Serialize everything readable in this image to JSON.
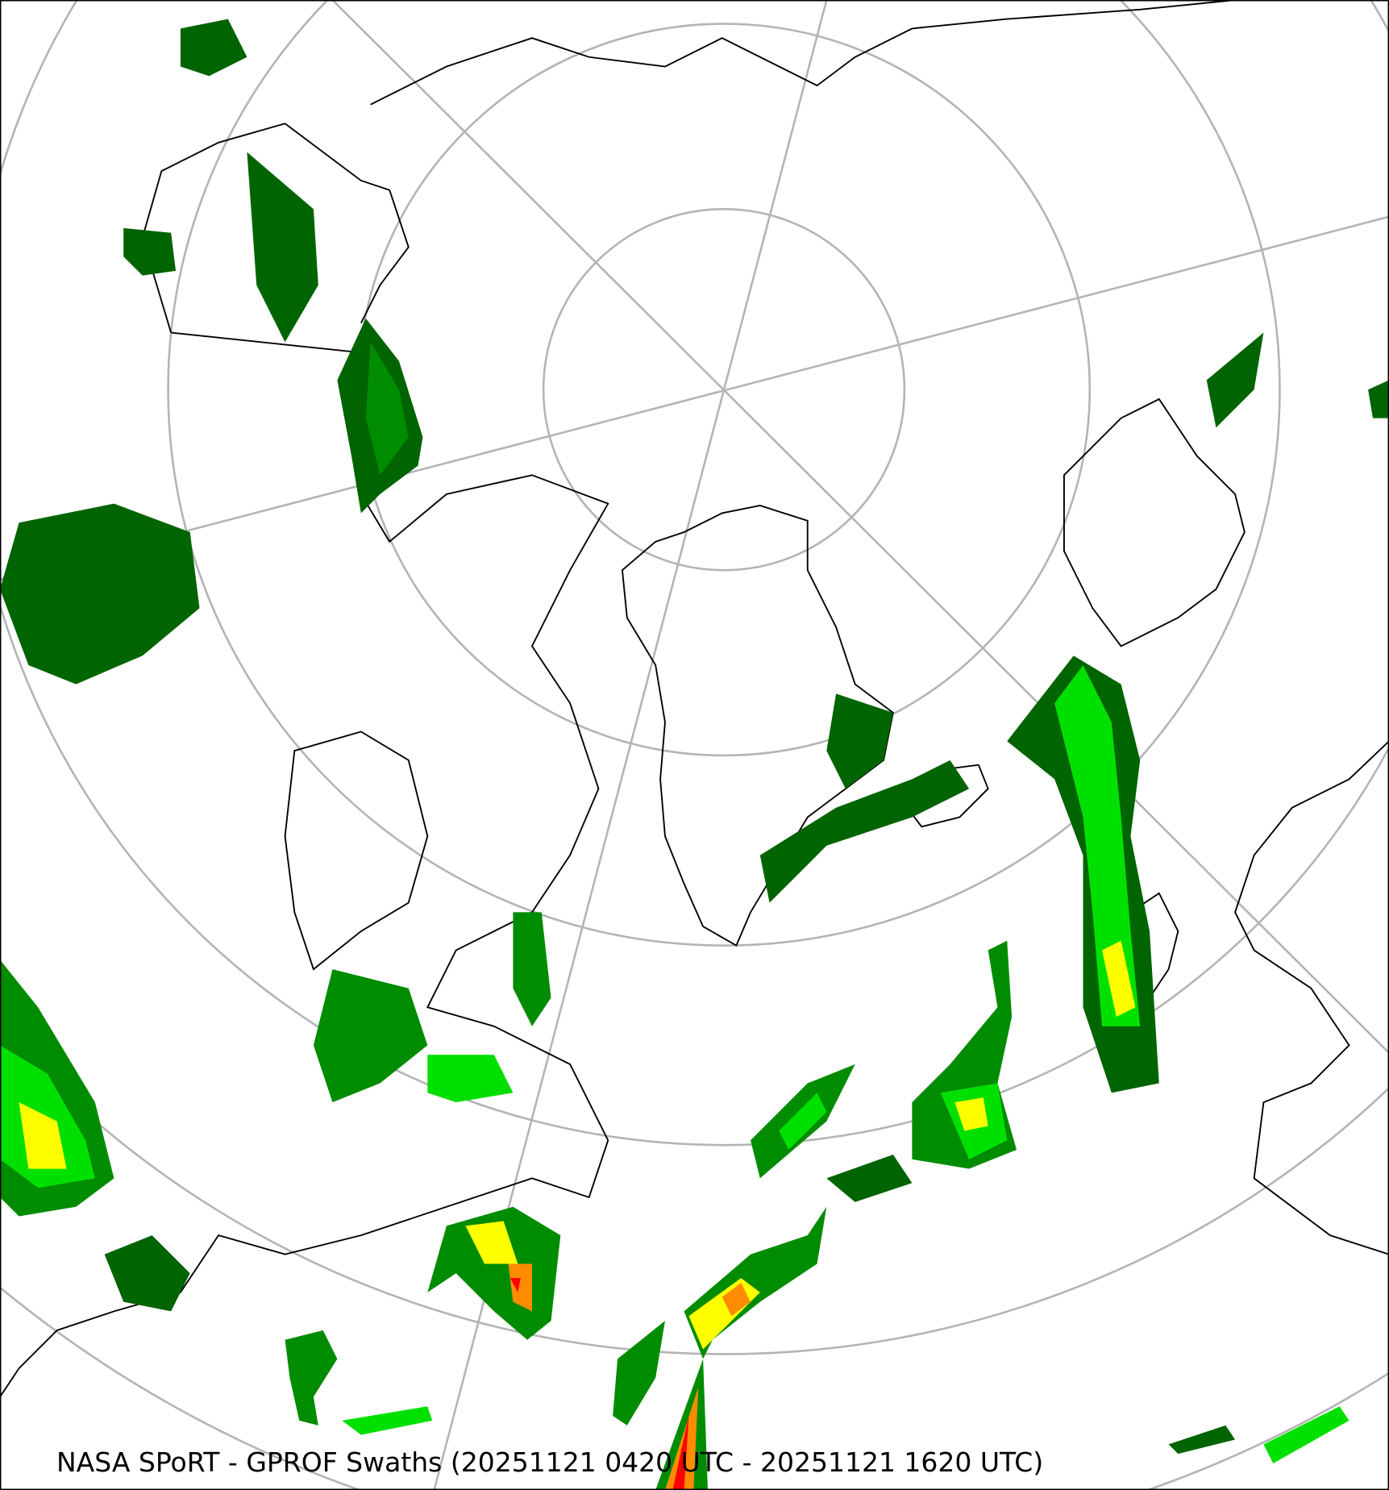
{
  "map": {
    "caption": "NASA SPoRT - GPROF Swaths (20251121 0420 UTC - 20251121 1620 UTC)",
    "projection": "north-polar-stereographic",
    "gridlines": true,
    "colors": {
      "grid": "#b4b4b4",
      "coastline": "#000000",
      "precip_very_light": "#006400",
      "precip_light": "#008c00",
      "precip_moderate": "#00e000",
      "precip_heavy": "#ffff00",
      "precip_very_heavy": "#ff8c00",
      "precip_extreme": "#ff0000"
    }
  }
}
